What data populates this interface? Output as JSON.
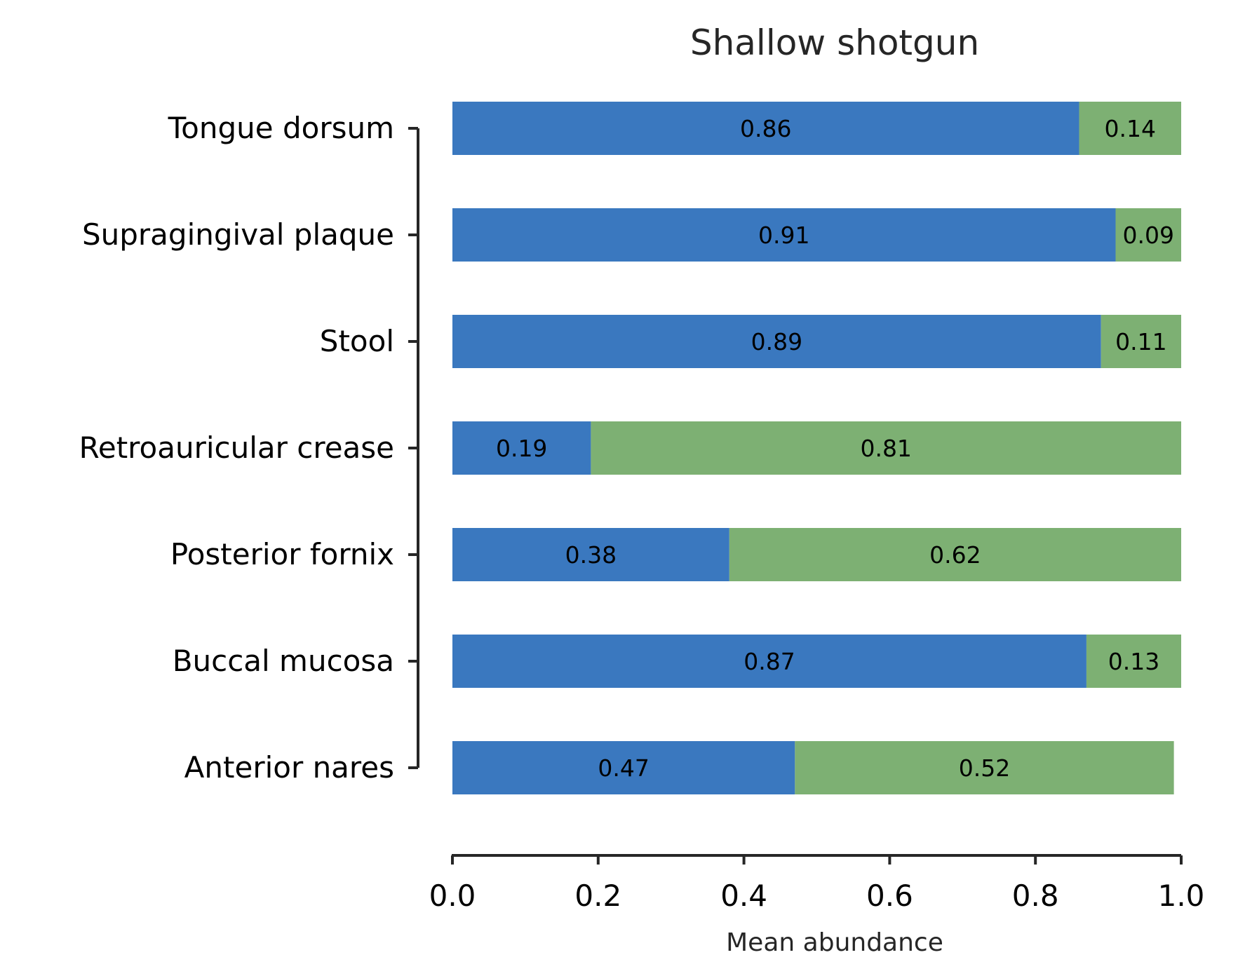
{
  "chart_data": {
    "type": "bar",
    "orientation": "horizontal",
    "stacked": true,
    "title": "Shallow shotgun",
    "xlabel": "Mean abundance",
    "ylabel": "",
    "xlim": [
      0,
      1
    ],
    "xticks": [
      "0.0",
      "0.2",
      "0.4",
      "0.6",
      "0.8",
      "1.0"
    ],
    "grid": false,
    "categories": [
      "Tongue dorsum",
      "Supragingival plaque",
      "Stool",
      "Retroauricular crease",
      "Posterior fornix",
      "Buccal mucosa",
      "Anterior nares"
    ],
    "series": [
      {
        "color": "#3a78bf",
        "values": [
          0.86,
          0.91,
          0.89,
          0.19,
          0.38,
          0.87,
          0.47
        ],
        "labels": [
          "0.86",
          "0.91",
          "0.89",
          "0.19",
          "0.38",
          "0.87",
          "0.47"
        ]
      },
      {
        "color": "#7db073",
        "values": [
          0.14,
          0.09,
          0.11,
          0.81,
          0.62,
          0.13,
          0.52
        ],
        "labels": [
          "0.14",
          "0.09",
          "0.11",
          "0.81",
          "0.62",
          "0.13",
          "0.52"
        ]
      }
    ]
  }
}
